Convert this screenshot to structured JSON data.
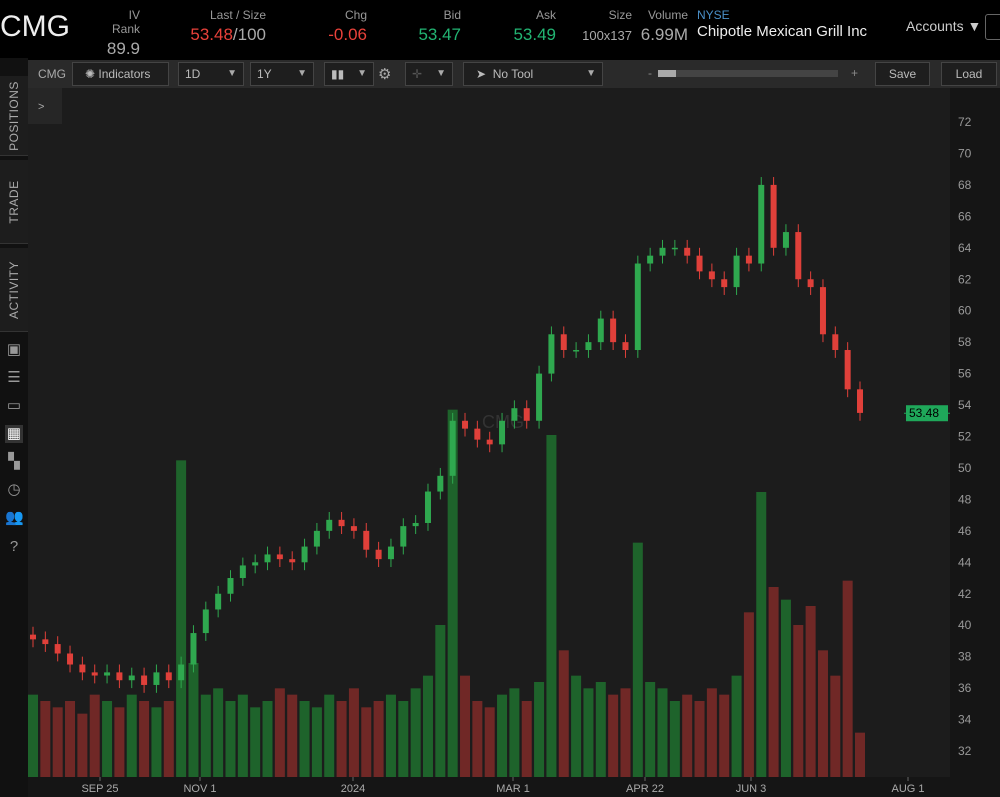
{
  "header": {
    "symbol": "CMG",
    "iv_rank_label": "IV Rank",
    "iv_rank": "89.9",
    "last_label": "Last / Size",
    "last": "53.48",
    "last_size": "/100",
    "chg_label": "Chg",
    "chg": "-0.06",
    "bid_label": "Bid",
    "bid": "53.47",
    "ask_label": "Ask",
    "ask": "53.49",
    "size_label": "Size",
    "size": "100x137",
    "volume_label": "Volume",
    "volume": "6.99M",
    "exchange": "NYSE",
    "company": "Chipotle Mexican Grill Inc",
    "accounts": "Accounts"
  },
  "toolbar": {
    "symbol": "CMG",
    "indicators": "Indicators",
    "interval": "1D",
    "range": "1Y",
    "tool": "No Tool",
    "zoom_minus": "-",
    "zoom_plus": "+",
    "save": "Save",
    "load": "Load",
    "expand": ">"
  },
  "sidebar": {
    "tabs": [
      "POSITIONS",
      "TRADE",
      "ACTIVITY"
    ],
    "icons": [
      "chart-box-icon",
      "list-icon",
      "tv-icon",
      "chart-grid-icon",
      "grid-icon",
      "clock-icon",
      "people-icon",
      "help-icon"
    ]
  },
  "colors": {
    "up": "#2fa84f",
    "down": "#e0403a",
    "up_volume": "#1f6b2e",
    "down_volume": "#7a2a28",
    "last_badge": "#1fa85a"
  },
  "chart_data": {
    "type": "candlestick",
    "watermark": "CMG",
    "ylim": [
      30,
      73
    ],
    "y_ticks": [
      32,
      34,
      36,
      38,
      40,
      42,
      44,
      46,
      48,
      50,
      52,
      54,
      56,
      58,
      60,
      62,
      64,
      66,
      68,
      70,
      72
    ],
    "x_ticks": [
      "SEP 25",
      "NOV 1",
      "2024",
      "MAR 1",
      "APR 22",
      "JUN 3",
      "AUG 1"
    ],
    "last_price": "53.48",
    "closes": [
      39.1,
      38.8,
      38.2,
      37.5,
      37,
      36.8,
      37,
      36.5,
      36.8,
      36.2,
      37,
      36.5,
      37.5,
      39.5,
      41,
      42,
      43,
      43.8,
      44,
      44.5,
      44.2,
      44,
      45,
      46,
      46.7,
      46.3,
      46,
      44.8,
      44.2,
      45,
      46.3,
      46.5,
      48.5,
      49.5,
      53,
      52.5,
      51.8,
      51.5,
      53,
      53.8,
      53,
      56,
      58.5,
      57.5,
      57.5,
      58,
      59.5,
      58,
      57.5,
      63,
      63.5,
      64,
      64,
      63.5,
      62.5,
      62,
      61.5,
      63.5,
      63,
      68,
      64,
      65,
      62,
      61.5,
      58.5,
      57.5,
      55,
      53.5
    ],
    "volumes_millions": [
      13,
      12,
      11,
      12,
      10,
      13,
      12,
      11,
      13,
      12,
      11,
      12,
      50,
      18,
      13,
      14,
      12,
      13,
      11,
      12,
      14,
      13,
      12,
      11,
      13,
      12,
      14,
      11,
      12,
      13,
      12,
      14,
      16,
      24,
      58,
      16,
      12,
      11,
      13,
      14,
      12,
      15,
      54,
      20,
      16,
      14,
      15,
      13,
      14,
      37,
      15,
      14,
      12,
      13,
      12,
      14,
      13,
      16,
      26,
      45,
      30,
      28,
      24,
      27,
      20,
      16,
      31,
      7
    ]
  }
}
